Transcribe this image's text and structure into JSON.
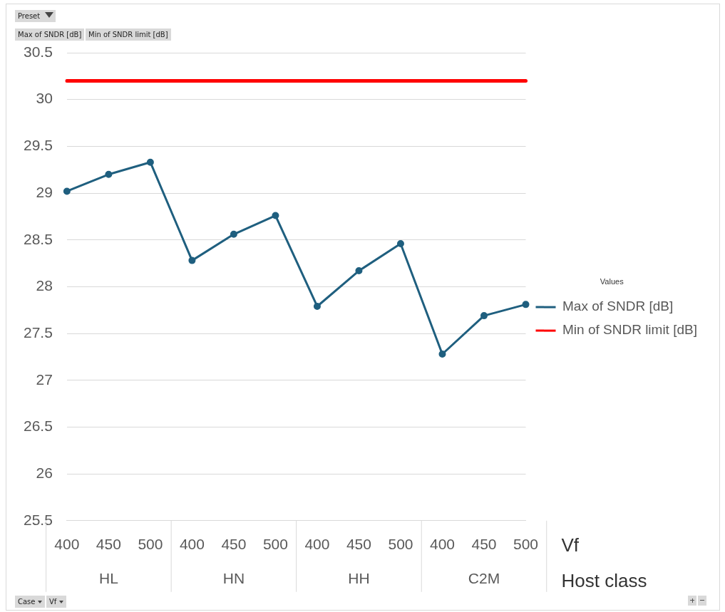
{
  "chart_data": {
    "type": "line",
    "categories": [
      "400",
      "450",
      "500",
      "400",
      "450",
      "500",
      "400",
      "450",
      "500",
      "400",
      "450",
      "500"
    ],
    "series": [
      {
        "name": "Max of SNDR [dB]",
        "color": "#1f5f7f",
        "marker": "circle",
        "values": [
          29.02,
          29.2,
          29.33,
          28.28,
          28.56,
          28.76,
          27.79,
          28.17,
          28.46,
          27.28,
          27.69,
          27.81
        ]
      },
      {
        "name": "Min of SNDR limit [dB]",
        "color": "#ff0000",
        "marker": "none",
        "values": [
          30.2,
          30.2,
          30.2,
          30.2,
          30.2,
          30.2,
          30.2,
          30.2,
          30.2,
          30.2,
          30.2,
          30.2
        ]
      }
    ],
    "xlabel": "Vf",
    "legend_title": "Values",
    "legend": "right",
    "grid": "y",
    "ylim": [
      25.5,
      30.5
    ],
    "yticks": [
      25.5,
      26,
      26.5,
      27,
      27.5,
      28,
      28.5,
      29,
      29.5,
      30,
      30.5
    ],
    "annotations": [
      "HL",
      "HN",
      "HH",
      "C2M",
      "Host class",
      "Preset",
      "Max of SNDR [dB]",
      "Min of SNDR limit [dB]",
      "Case",
      "Vf"
    ]
  }
}
